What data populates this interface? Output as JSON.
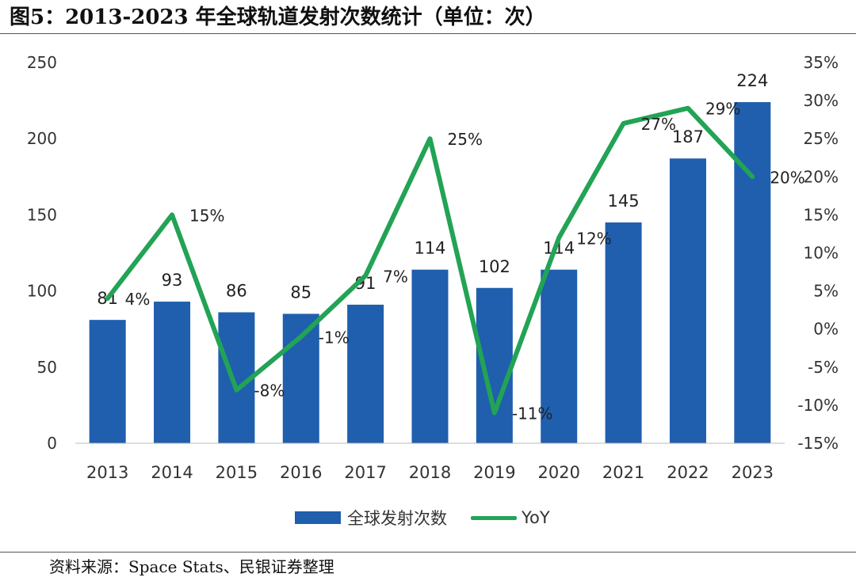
{
  "figure_title": "图5：2013-2023 年全球轨道发射次数统计（单位：次）",
  "source_note": "资料来源：Space Stats、民银证券整理",
  "chart_data": {
    "type": "bar",
    "title": "2013-2023 年全球轨道发射次数统计（单位：次）",
    "categories": [
      "2013",
      "2014",
      "2015",
      "2016",
      "2017",
      "2018",
      "2019",
      "2020",
      "2021",
      "2022",
      "2023"
    ],
    "series": [
      {
        "name": "全球发射次数",
        "type": "bar",
        "axis": "left",
        "color": "#1f5fad",
        "values": [
          81,
          93,
          86,
          85,
          91,
          114,
          102,
          114,
          145,
          187,
          224
        ],
        "labels": [
          "81",
          "93",
          "86",
          "85",
          "91",
          "114",
          "102",
          "114",
          "145",
          "187",
          "224"
        ]
      },
      {
        "name": "YoY",
        "type": "line",
        "axis": "right",
        "color": "#22a355",
        "values": [
          4,
          15,
          -8,
          -1,
          7,
          25,
          -11,
          12,
          27,
          29,
          20
        ],
        "labels": [
          "4%",
          "15%",
          "-8%",
          "-1%",
          "7%",
          "25%",
          "-11%",
          "12%",
          "27%",
          "29%",
          "20%"
        ]
      }
    ],
    "y_left": {
      "range": [
        0,
        250
      ],
      "ticks": [
        "0",
        "50",
        "100",
        "150",
        "200",
        "250"
      ]
    },
    "y_right": {
      "range": [
        -15,
        35
      ],
      "ticks": [
        "-15%",
        "-10%",
        "-5%",
        "0%",
        "5%",
        "10%",
        "15%",
        "20%",
        "25%",
        "30%",
        "35%"
      ]
    },
    "grid": false,
    "legend_position": "bottom-center"
  }
}
